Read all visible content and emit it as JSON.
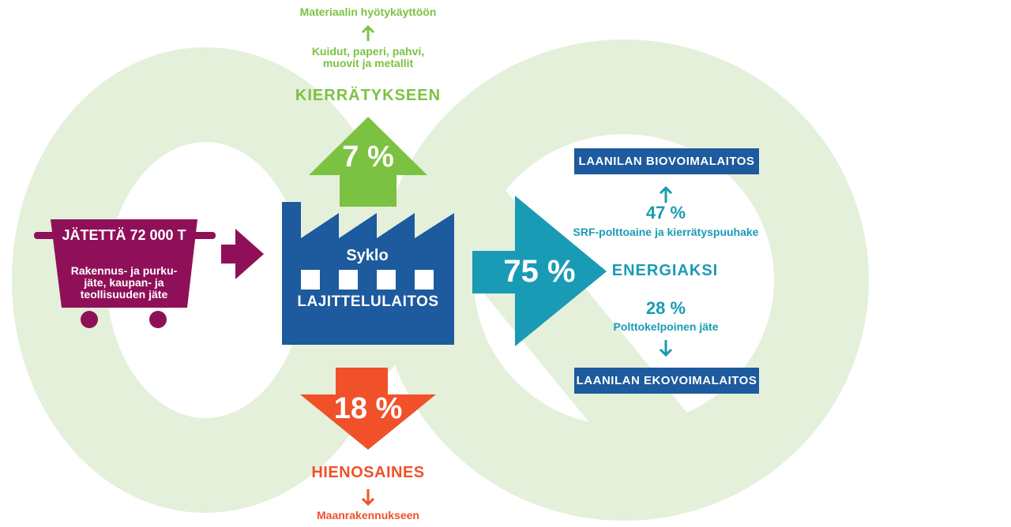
{
  "colors": {
    "green": "#7cc242",
    "teal": "#1a9bb5",
    "orange": "#f0512a",
    "plum": "#8f1058",
    "blue": "#1d5a9e",
    "loop": "#e4f0da"
  },
  "recycling": {
    "top_title": "Materiaalin hyötykäyttöön",
    "materials_line1": "Kuidut, paperi, pahvi,",
    "materials_line2": "muovit ja metallit",
    "heading": "KIERRÄTYKSEEN",
    "percent": "7 %"
  },
  "input": {
    "title": "JÄTETTÄ 72 000 T",
    "desc_line1": "Rakennus- ja purku-",
    "desc_line2": "jäte, kaupan- ja",
    "desc_line3": "teollisuuden jäte"
  },
  "plant": {
    "logo": "Syklo",
    "name": "LAJITTELULAITOS"
  },
  "energy": {
    "percent": "75 %",
    "heading": "ENERGIAKSI",
    "bio_plant": "LAANILAN BIOVOIMALAITOS",
    "bio_percent": "47 %",
    "bio_desc": "SRF-polttoaine ja kierrätyspuuhake",
    "eco_percent": "28 %",
    "eco_desc": "Polttokelpoinen jäte",
    "eco_plant": "LAANILAN EKOVOIMALAITOS"
  },
  "fines": {
    "percent": "18 %",
    "heading": "HIENOSAINES",
    "destination": "Maanrakennukseen"
  }
}
